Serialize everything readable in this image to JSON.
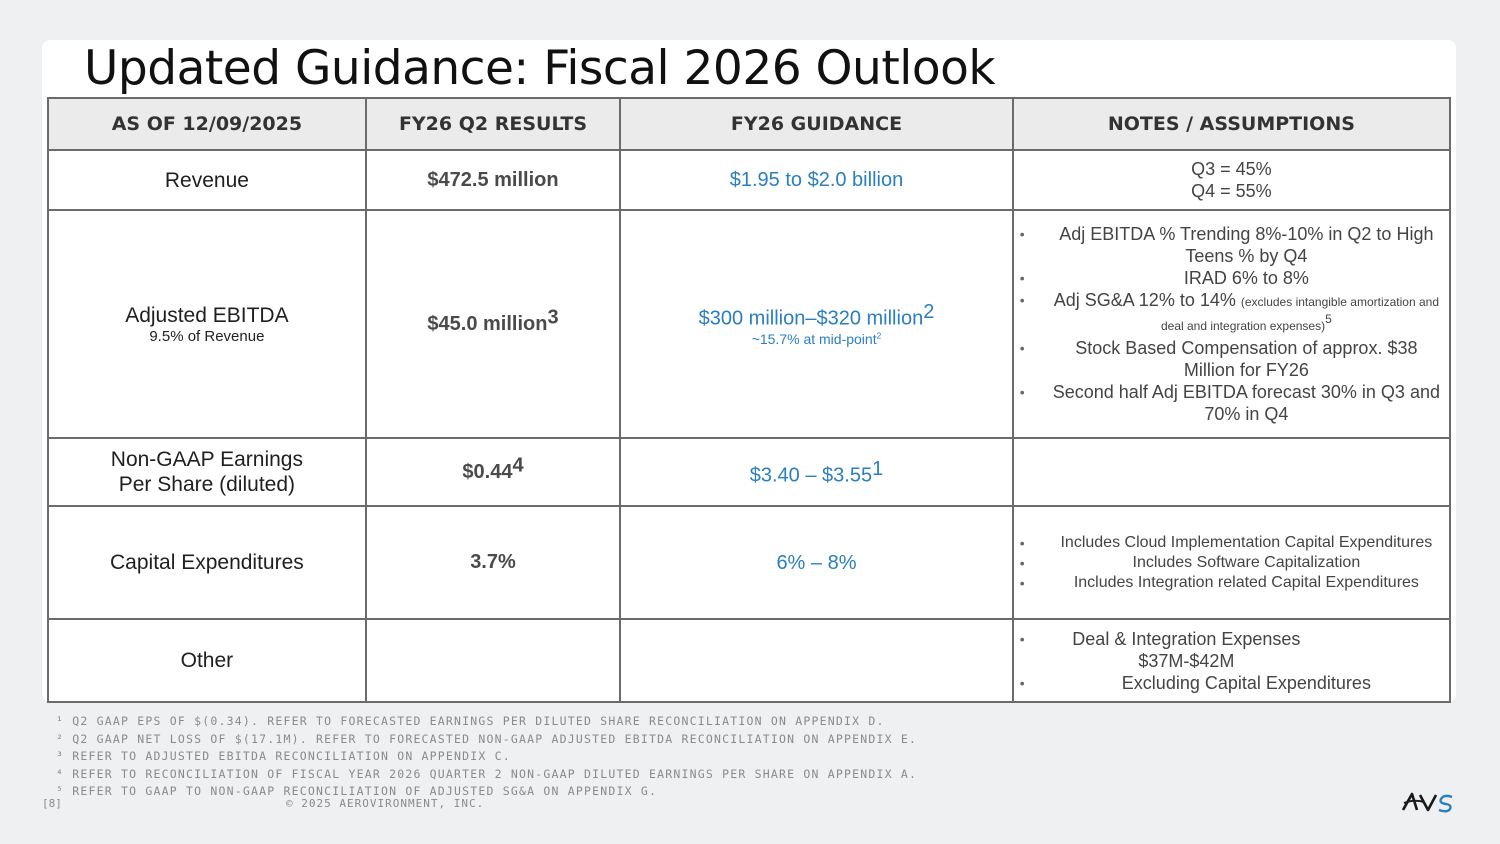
{
  "title": "Updated Guidance: Fiscal 2026 Outlook",
  "headers": {
    "as_of": "AS OF 12/09/2025",
    "q2_results": "FY26 Q2 RESULTS",
    "guidance": "FY26 GUIDANCE",
    "notes": "NOTES / ASSUMPTIONS"
  },
  "rows": {
    "revenue": {
      "metric": "Revenue",
      "result": "$472.5 million",
      "guidance": "$1.95 to $2.0 billion",
      "notes": [
        "Q3 = 45%",
        "Q4 = 55%"
      ]
    },
    "ebitda": {
      "metric": "Adjusted EBITDA",
      "metric_sub": "9.5% of Revenue",
      "result": "$45.0 million",
      "result_sup": "3",
      "guidance": "$300 million–$320 million",
      "guidance_sup": "2",
      "guidance_sub": "~15.7% at mid-point",
      "guidance_sub_sup": "2",
      "notes": {
        "b1": "Adj EBITDA % Trending 8%-10% in Q2 to High Teens % by Q4",
        "b2": "IRAD 6% to 8%",
        "b3": "Adj SG&A 12% to 14%",
        "b3_small": "(excludes intangible amortization and deal and integration expenses)",
        "b3_sup": "5",
        "b4": "Stock Based Compensation of approx. $38 Million for FY26",
        "b5": "Second half Adj EBITDA forecast 30% in Q3 and 70% in Q4"
      }
    },
    "eps": {
      "metric_l1": "Non-GAAP Earnings",
      "metric_l2": "Per Share (diluted)",
      "result": "$0.44",
      "result_sup": "4",
      "guidance": "$3.40 – $3.55",
      "guidance_sup": "1"
    },
    "capex": {
      "metric": "Capital Expenditures",
      "result": "3.7%",
      "guidance": "6% – 8%",
      "notes": [
        "Includes Cloud Implementation Capital Expenditures",
        "Includes Software Capitalization",
        "Includes Integration related Capital Expenditures"
      ]
    },
    "other": {
      "metric": "Other",
      "notes": [
        "Deal & Integration Expenses $37M-$42M",
        "Excluding Capital Expenditures"
      ]
    }
  },
  "footnotes": [
    "¹ Q2 GAAP EPS OF $(0.34). REFER TO FORECASTED EARNINGS PER DILUTED SHARE RECONCILIATION ON APPENDIX D.",
    "² Q2 GAAP NET LOSS OF $(17.1M).  REFER TO FORECASTED NON-GAAP ADJUSTED EBITDA RECONCILIATION ON APPENDIX E.",
    "³ REFER TO ADJUSTED EBITDA RECONCILIATION ON APPENDIX C.",
    "⁴ REFER TO RECONCILIATION OF FISCAL YEAR 2026 QUARTER 2 NON-GAAP DILUTED EARNINGS PER SHARE ON APPENDIX A.",
    "⁵ REFER TO GAAP TO NON-GAAP RECONCILIATION OF ADJUSTED SG&A ON APPENDIX G."
  ],
  "page_number": "[8]",
  "copyright": "© 2025 AEROVIRONMENT, INC.",
  "logo": {
    "icon": "av-logo-icon",
    "color": "#1a1a1a",
    "accent": "#2a7fc1"
  }
}
